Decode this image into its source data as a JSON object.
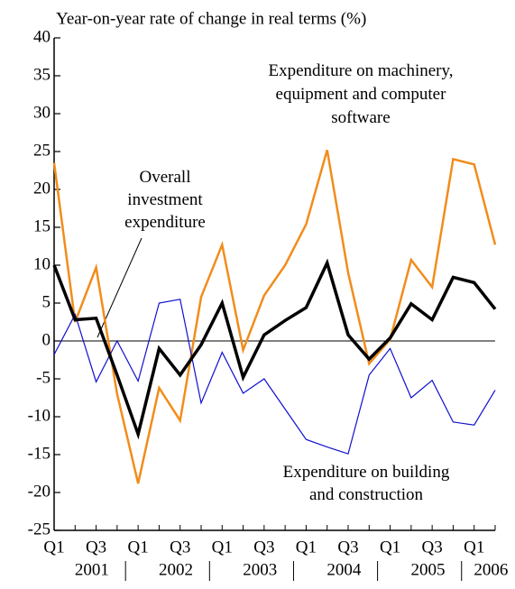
{
  "chart_data": {
    "type": "line",
    "title": "Year-on-year rate of change in real terms (%)",
    "categories": [
      "Q1",
      null,
      "Q3",
      null,
      "Q1",
      null,
      "Q3",
      null,
      "Q1",
      null,
      "Q3",
      null,
      "Q1",
      null,
      "Q3",
      null,
      "Q1",
      null,
      "Q3",
      null,
      "Q1",
      null
    ],
    "years": [
      "2001",
      "2002",
      "2003",
      "2004",
      "2005",
      "2006"
    ],
    "series": [
      {
        "name": "Expenditure on machinery, equipment and computer software",
        "color": "#f28c1c",
        "values": [
          23.5,
          2.5,
          9.7,
          -7,
          -18.8,
          -6.2,
          -10.5,
          5.8,
          12.7,
          -1.2,
          6,
          10,
          15.4,
          25.2,
          9,
          -3,
          0.2,
          10.7,
          7.1,
          24,
          23.3,
          12.7
        ]
      },
      {
        "name": "Expenditure on building and construction",
        "color": "#1010d0",
        "values": [
          -1.8,
          3.5,
          -5.4,
          0,
          -5.3,
          5,
          5.5,
          -8.2,
          -1.5,
          -6.9,
          -5,
          -9,
          -13,
          -14,
          -14.9,
          -4.5,
          -1,
          -7.5,
          -5.2,
          -10.7,
          -11.1,
          -6.5
        ]
      },
      {
        "name": "Overall investment expenditure",
        "color": "#000000",
        "values": [
          10,
          2.8,
          3,
          -4.5,
          -12.3,
          -1,
          -4.5,
          -0.5,
          5,
          -4.8,
          0.8,
          2.7,
          4.4,
          10.3,
          0.8,
          -2.4,
          0.4,
          4.9,
          2.8,
          8.4,
          7.7,
          4.2
        ]
      }
    ],
    "ylim": [
      -25,
      40
    ],
    "yticks": [
      -25,
      -20,
      -15,
      -10,
      -5,
      0,
      5,
      10,
      15,
      20,
      25,
      30,
      35,
      40
    ]
  }
}
